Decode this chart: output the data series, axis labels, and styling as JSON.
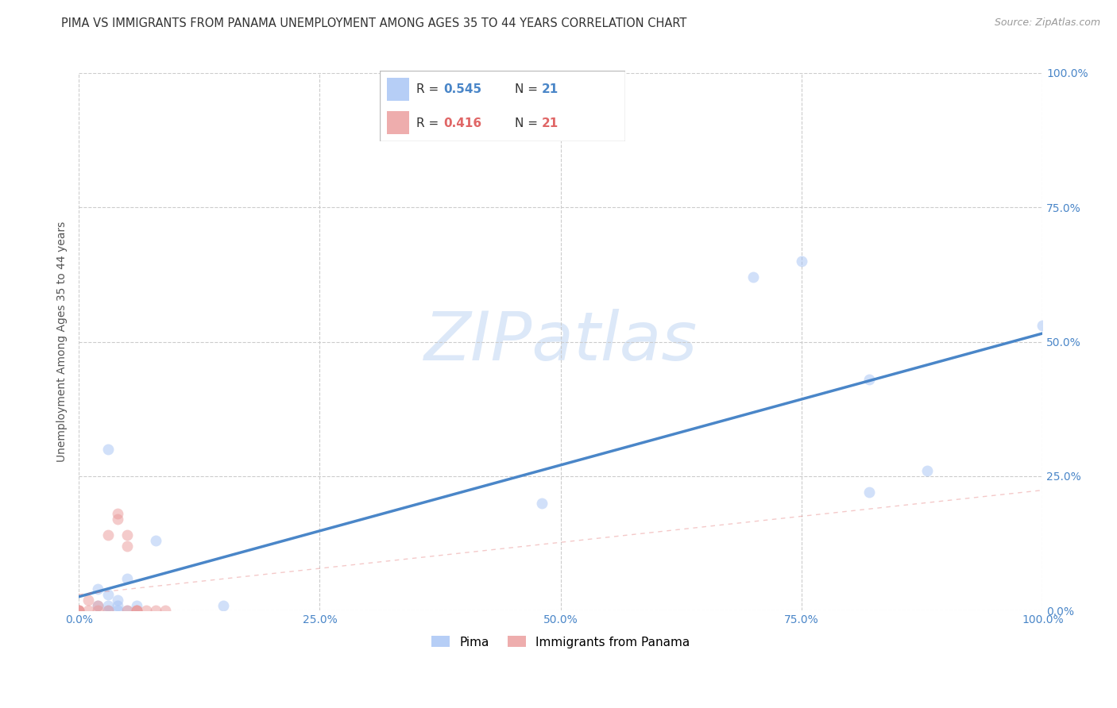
{
  "title": "PIMA VS IMMIGRANTS FROM PANAMA UNEMPLOYMENT AMONG AGES 35 TO 44 YEARS CORRELATION CHART",
  "source": "Source: ZipAtlas.com",
  "ylabel": "Unemployment Among Ages 35 to 44 years",
  "xlim": [
    0,
    1.0
  ],
  "ylim": [
    0,
    1.0
  ],
  "xticks": [
    0.0,
    0.25,
    0.5,
    0.75,
    1.0
  ],
  "yticks": [
    0.0,
    0.25,
    0.5,
    0.75,
    1.0
  ],
  "xticklabels": [
    "0.0%",
    "25.0%",
    "50.0%",
    "75.0%",
    "100.0%"
  ],
  "yticklabels": [
    "0.0%",
    "25.0%",
    "50.0%",
    "75.0%",
    "100.0%"
  ],
  "pima_color": "#a4c2f4",
  "panama_color": "#ea9999",
  "pima_R": 0.545,
  "pima_N": 21,
  "panama_R": 0.416,
  "panama_N": 21,
  "legend_label_pima": "Pima",
  "legend_label_panama": "Immigrants from Panama",
  "pima_x": [
    0.02,
    0.02,
    0.03,
    0.03,
    0.03,
    0.04,
    0.04,
    0.05,
    0.05,
    0.06,
    0.08,
    0.15,
    0.48,
    0.7,
    0.75,
    0.82,
    0.82,
    0.88,
    1.0,
    0.03,
    0.04
  ],
  "pima_y": [
    0.01,
    0.04,
    0.0,
    0.01,
    0.03,
    0.0,
    0.02,
    0.0,
    0.06,
    0.01,
    0.13,
    0.01,
    0.2,
    0.62,
    0.65,
    0.43,
    0.22,
    0.26,
    0.53,
    0.3,
    0.01
  ],
  "panama_x": [
    0.0,
    0.0,
    0.01,
    0.01,
    0.02,
    0.02,
    0.03,
    0.03,
    0.04,
    0.04,
    0.05,
    0.05,
    0.05,
    0.06,
    0.06,
    0.06,
    0.07,
    0.08,
    0.09,
    0.0,
    0.0
  ],
  "panama_y": [
    0.0,
    0.0,
    0.0,
    0.02,
    0.0,
    0.01,
    0.0,
    0.14,
    0.17,
    0.18,
    0.0,
    0.12,
    0.14,
    0.0,
    0.0,
    0.0,
    0.0,
    0.0,
    0.0,
    0.0,
    0.0
  ],
  "pima_line_color": "#4a86c8",
  "panama_line_color": "#e06666",
  "grid_color": "#cccccc",
  "watermark_color": "#dce8f8",
  "bg_color": "#ffffff",
  "marker_size": 100,
  "marker_alpha": 0.5,
  "title_fontsize": 10.5,
  "axis_label_fontsize": 10,
  "tick_fontsize": 10,
  "tick_color": "#4a86c8"
}
